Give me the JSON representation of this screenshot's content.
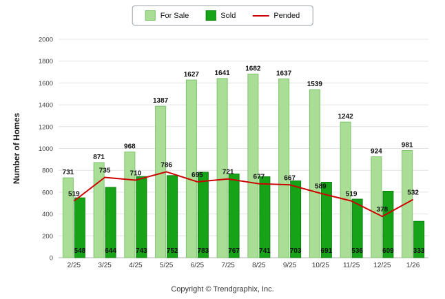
{
  "legend": {
    "for_sale": "For Sale",
    "sold": "Sold",
    "pended": "Pended"
  },
  "footer": "Copyright © Trendgraphix, Inc.",
  "colors": {
    "for_sale": "#aade96",
    "for_sale_border": "#7cc46c",
    "sold": "#17a317",
    "sold_border": "#0e820e",
    "pended": "#cc0000"
  },
  "chart_data": {
    "type": "bar",
    "title": "",
    "categories": [
      "2/25",
      "3/25",
      "4/25",
      "5/25",
      "6/25",
      "7/25",
      "8/25",
      "9/25",
      "10/25",
      "11/25",
      "12/25",
      "1/26"
    ],
    "series": [
      {
        "name": "For Sale",
        "type": "bar",
        "values": [
          731,
          871,
          968,
          1387,
          1627,
          1641,
          1682,
          1637,
          1539,
          1242,
          924,
          981
        ]
      },
      {
        "name": "Sold",
        "type": "bar",
        "values": [
          548,
          644,
          743,
          752,
          783,
          767,
          741,
          703,
          691,
          536,
          609,
          333
        ]
      },
      {
        "name": "Pended",
        "type": "line",
        "values": [
          519,
          735,
          710,
          786,
          695,
          721,
          677,
          667,
          589,
          519,
          378,
          532
        ]
      }
    ],
    "xlabel": "",
    "ylabel": "Number of Homes",
    "ylim": [
      0,
      2000
    ],
    "ytick_step": 200,
    "grid": true,
    "legend_position": "top"
  }
}
